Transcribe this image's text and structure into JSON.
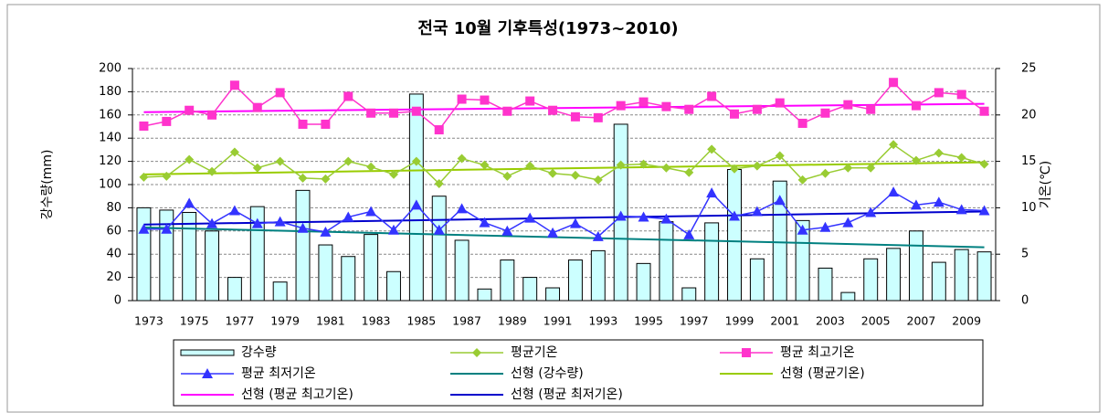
{
  "chart_data": {
    "type": "bar-line",
    "title": "전국 10월 기후특성(1973~2010)",
    "y_label": "강수량(mm)",
    "y2_label": "기온(℃)",
    "categories": [
      "1973",
      null,
      "1975",
      null,
      "1977",
      null,
      "1979",
      null,
      "1981",
      null,
      "1983",
      null,
      "1985",
      null,
      "1987",
      null,
      "1989",
      null,
      "1991",
      null,
      "1993",
      null,
      "1995",
      null,
      "1997",
      null,
      "1999",
      null,
      "2001",
      null,
      "2003",
      null,
      "2005",
      null,
      "2007",
      null,
      "2009",
      null
    ],
    "ylim": [
      0,
      200
    ],
    "yticks": [
      0,
      20,
      40,
      60,
      80,
      100,
      120,
      140,
      160,
      180,
      200
    ],
    "y2lim": [
      0,
      25
    ],
    "y2ticks": [
      0,
      5,
      10,
      15,
      20,
      25
    ],
    "grid": true,
    "series": [
      {
        "name": "강수량",
        "kind": "bar",
        "color": "#ccffff",
        "values": [
          80,
          78,
          76,
          60,
          20,
          81,
          16,
          95,
          48,
          38,
          57,
          25,
          178,
          90,
          52,
          10,
          35,
          20,
          11,
          35,
          43,
          152,
          32,
          68,
          11,
          67,
          113,
          36,
          103,
          69,
          28,
          7,
          36,
          45,
          60,
          33,
          44,
          42
        ]
      },
      {
        "name": "평균기온",
        "kind": "line",
        "marker": "diamond",
        "axis": "y2",
        "color": "#99cc33",
        "values": [
          13.3,
          13.4,
          15.2,
          13.9,
          16.0,
          14.3,
          15.0,
          13.2,
          13.1,
          15.0,
          14.4,
          13.6,
          15.0,
          12.6,
          15.3,
          14.6,
          13.4,
          14.5,
          13.7,
          13.5,
          13.0,
          14.6,
          14.7,
          14.3,
          13.8,
          16.3,
          14.2,
          14.5,
          15.6,
          13.0,
          13.7,
          14.3,
          14.3,
          16.8,
          15.1,
          15.9,
          15.4,
          14.7
        ]
      },
      {
        "name": "평균 최고기온",
        "kind": "line",
        "marker": "square",
        "axis": "y2",
        "color": "#ff33cc",
        "values": [
          18.8,
          19.3,
          20.5,
          20.0,
          23.2,
          20.8,
          22.4,
          19.0,
          19.0,
          22.0,
          20.2,
          20.2,
          20.4,
          18.4,
          21.7,
          21.6,
          20.4,
          21.5,
          20.5,
          19.8,
          19.7,
          21.0,
          21.4,
          20.9,
          20.6,
          22.0,
          20.1,
          20.6,
          21.3,
          19.1,
          20.2,
          21.1,
          20.6,
          23.5,
          21.0,
          22.4,
          22.2,
          20.4
        ]
      },
      {
        "name": "평균 최저기온",
        "kind": "line",
        "marker": "triangle",
        "axis": "y2",
        "color": "#3333ff",
        "values": [
          7.7,
          7.7,
          10.5,
          8.3,
          9.7,
          8.3,
          8.5,
          7.8,
          7.4,
          9.0,
          9.6,
          7.6,
          10.3,
          7.6,
          9.9,
          8.4,
          7.5,
          8.9,
          7.3,
          8.3,
          6.9,
          9.1,
          9.0,
          8.8,
          7.1,
          11.6,
          9.1,
          9.6,
          10.8,
          7.6,
          7.9,
          8.4,
          9.5,
          11.7,
          10.3,
          10.6,
          9.8,
          9.7
        ]
      }
    ],
    "trendlines": [
      {
        "name": "선형 (강수량)",
        "color": "#008080",
        "values": [
          63,
          46
        ]
      },
      {
        "name": "선형 (평균기온)",
        "color": "#99cc00",
        "axis": "y2",
        "values": [
          13.6,
          14.9
        ]
      },
      {
        "name": "선형 (평균 최고기온)",
        "color": "#ff00ff",
        "axis": "y2",
        "values": [
          20.3,
          21.2
        ]
      },
      {
        "name": "선형 (평균 최저기온)",
        "color": "#0000cc",
        "axis": "y2",
        "values": [
          8.2,
          9.6
        ]
      }
    ]
  }
}
